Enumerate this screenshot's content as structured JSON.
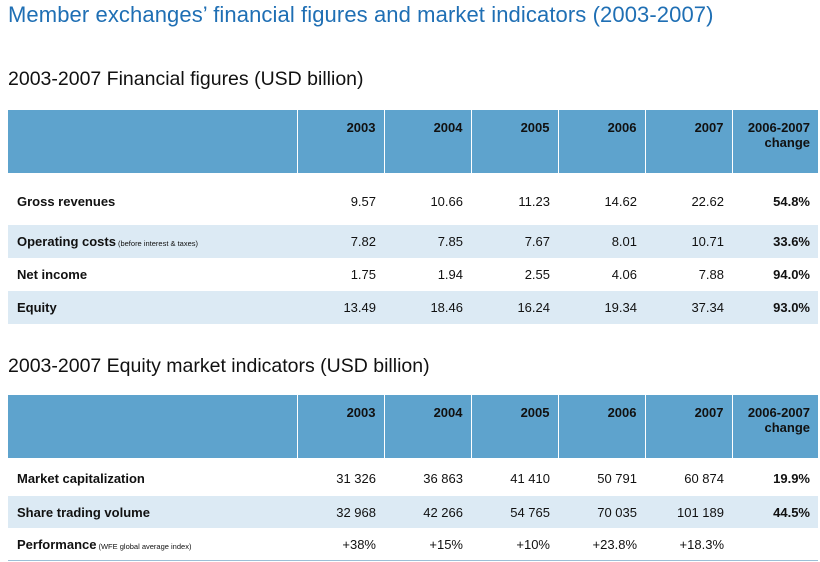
{
  "page": {
    "title": "Member exchanges’ financial figures and market indicators (2003-2007)"
  },
  "financial": {
    "title": "2003-2007 Financial figures (USD billion)",
    "headers": [
      "2003",
      "2004",
      "2005",
      "2006",
      "2007"
    ],
    "change_header": [
      "2006-2007",
      "change"
    ],
    "rows": [
      {
        "label": "Gross revenues",
        "note": "",
        "values": [
          "9.57",
          "10.66",
          "11.23",
          "14.62",
          "22.62"
        ],
        "change": "54.8%"
      },
      {
        "label": "Operating costs",
        "note": "(before interest & taxes)",
        "values": [
          "7.82",
          "7.85",
          "7.67",
          "8.01",
          "10.71"
        ],
        "change": "33.6%"
      },
      {
        "label": "Net income",
        "note": "",
        "values": [
          "1.75",
          "1.94",
          "2.55",
          "4.06",
          "7.88"
        ],
        "change": "94.0%"
      },
      {
        "label": "Equity",
        "note": "",
        "values": [
          "13.49",
          "18.46",
          "16.24",
          "19.34",
          "37.34"
        ],
        "change": "93.0%"
      }
    ]
  },
  "equity": {
    "title": "2003-2007 Equity market indicators (USD billion)",
    "headers": [
      "2003",
      "2004",
      "2005",
      "2006",
      "2007"
    ],
    "change_header": [
      "2006-2007",
      "change"
    ],
    "rows": [
      {
        "label": "Market capitalization",
        "note": "",
        "values": [
          "31 326",
          "36 863",
          "41 410",
          "50 791",
          "60 874"
        ],
        "change": "19.9%"
      },
      {
        "label": "Share trading volume",
        "note": "",
        "values": [
          "32 968",
          "42 266",
          "54 765",
          "70 035",
          "101 189"
        ],
        "change": "44.5%"
      },
      {
        "label": "Performance",
        "note": "(WFE global average index)",
        "values": [
          "+38%",
          "+15%",
          "+10%",
          "+23.8%",
          "+18.3%"
        ],
        "change": ""
      }
    ]
  },
  "colors": {
    "title_blue": "#1f6fb4",
    "header_blue": "#5ea3cd",
    "row_shade": "#dceaf4"
  }
}
